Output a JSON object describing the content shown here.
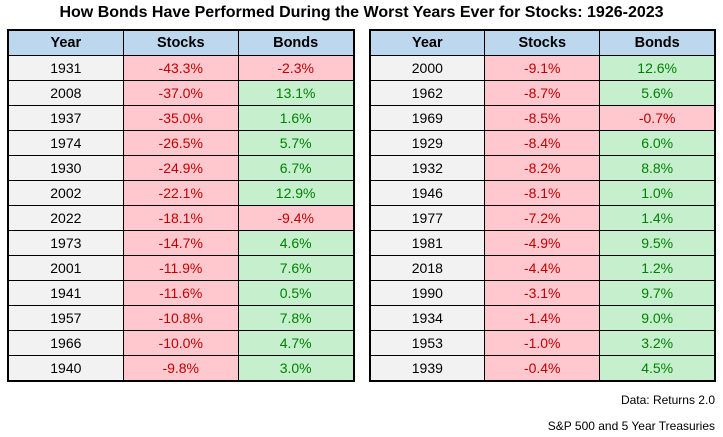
{
  "title": "How Bonds Have Performed During the Worst Years Ever for Stocks: 1926-2023",
  "chart_data": {
    "type": "table",
    "columns": [
      "Year",
      "Stocks",
      "Bonds"
    ],
    "left_table": {
      "rows": [
        {
          "year": "1931",
          "stocks": "-43.3%",
          "bonds": "-2.3%",
          "bonds_negative": true
        },
        {
          "year": "2008",
          "stocks": "-37.0%",
          "bonds": "13.1%",
          "bonds_negative": false
        },
        {
          "year": "1937",
          "stocks": "-35.0%",
          "bonds": "1.6%",
          "bonds_negative": false
        },
        {
          "year": "1974",
          "stocks": "-26.5%",
          "bonds": "5.7%",
          "bonds_negative": false
        },
        {
          "year": "1930",
          "stocks": "-24.9%",
          "bonds": "6.7%",
          "bonds_negative": false
        },
        {
          "year": "2002",
          "stocks": "-22.1%",
          "bonds": "12.9%",
          "bonds_negative": false
        },
        {
          "year": "2022",
          "stocks": "-18.1%",
          "bonds": "-9.4%",
          "bonds_negative": true
        },
        {
          "year": "1973",
          "stocks": "-14.7%",
          "bonds": "4.6%",
          "bonds_negative": false
        },
        {
          "year": "2001",
          "stocks": "-11.9%",
          "bonds": "7.6%",
          "bonds_negative": false
        },
        {
          "year": "1941",
          "stocks": "-11.6%",
          "bonds": "0.5%",
          "bonds_negative": false
        },
        {
          "year": "1957",
          "stocks": "-10.8%",
          "bonds": "7.8%",
          "bonds_negative": false
        },
        {
          "year": "1966",
          "stocks": "-10.0%",
          "bonds": "4.7%",
          "bonds_negative": false
        },
        {
          "year": "1940",
          "stocks": "-9.8%",
          "bonds": "3.0%",
          "bonds_negative": false
        }
      ]
    },
    "right_table": {
      "rows": [
        {
          "year": "2000",
          "stocks": "-9.1%",
          "bonds": "12.6%",
          "bonds_negative": false
        },
        {
          "year": "1962",
          "stocks": "-8.7%",
          "bonds": "5.6%",
          "bonds_negative": false
        },
        {
          "year": "1969",
          "stocks": "-8.5%",
          "bonds": "-0.7%",
          "bonds_negative": true
        },
        {
          "year": "1929",
          "stocks": "-8.4%",
          "bonds": "6.0%",
          "bonds_negative": false
        },
        {
          "year": "1932",
          "stocks": "-8.2%",
          "bonds": "8.8%",
          "bonds_negative": false
        },
        {
          "year": "1946",
          "stocks": "-8.1%",
          "bonds": "1.0%",
          "bonds_negative": false
        },
        {
          "year": "1977",
          "stocks": "-7.2%",
          "bonds": "1.4%",
          "bonds_negative": false
        },
        {
          "year": "1981",
          "stocks": "-4.9%",
          "bonds": "9.5%",
          "bonds_negative": false
        },
        {
          "year": "2018",
          "stocks": "-4.4%",
          "bonds": "1.2%",
          "bonds_negative": false
        },
        {
          "year": "1990",
          "stocks": "-3.1%",
          "bonds": "9.7%",
          "bonds_negative": false
        },
        {
          "year": "1934",
          "stocks": "-1.4%",
          "bonds": "9.0%",
          "bonds_negative": false
        },
        {
          "year": "1953",
          "stocks": "-1.0%",
          "bonds": "3.2%",
          "bonds_negative": false
        },
        {
          "year": "1939",
          "stocks": "-0.4%",
          "bonds": "4.5%",
          "bonds_negative": false
        }
      ]
    }
  },
  "footer": {
    "source": "Data: Returns 2.0",
    "note": "S&P 500 and 5 Year Treasuries"
  },
  "colors": {
    "header_bg": "#BDD7EE",
    "year_bg": "#F2F2F2",
    "negative_bg": "#FFC7CE",
    "negative_text": "#C00000",
    "positive_bg": "#C6EFCE",
    "positive_text": "#008000",
    "border": "#000000"
  }
}
